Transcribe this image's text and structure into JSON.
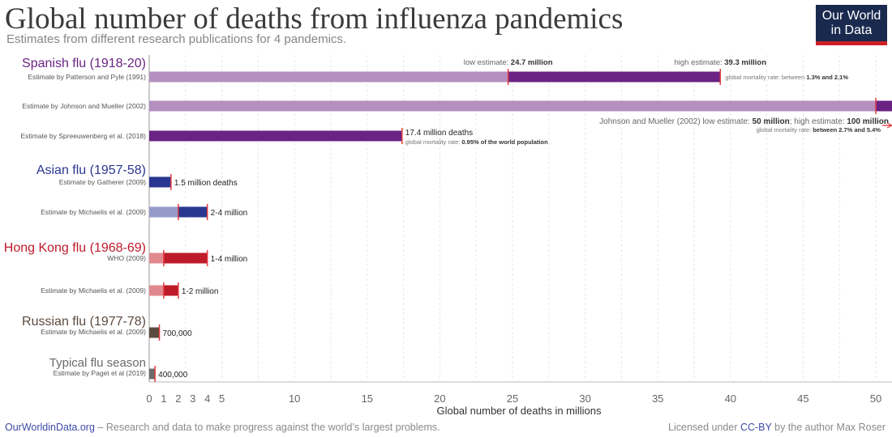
{
  "header": {
    "title": "Global number of deaths from influenza pandemics",
    "subtitle": "Estimates from different research publications for 4 pandemics.",
    "logo": "Our World in Data",
    "logo_line1": "Our World",
    "logo_line2": "in Data"
  },
  "footer": {
    "site": "OurWorldinData.org",
    "tagline": " – Research and data to make progress against the world’s largest problems.",
    "license_prefix": "Licensed under ",
    "license": "CC-BY",
    "license_suffix": " by the author Max Roser"
  },
  "chart_data": {
    "type": "bar",
    "orientation": "horizontal",
    "xlabel": "Global number of deaths in millions",
    "xlim": [
      0,
      50
    ],
    "xticks": [
      0,
      1,
      2,
      3,
      4,
      5,
      10,
      15,
      20,
      25,
      30,
      35,
      40,
      45,
      50
    ],
    "grid": true,
    "groups": [
      {
        "name": "Spanish flu (1918-20)",
        "color_dark": "#6a2383",
        "color_light": "#b48fbf",
        "rows": [
          {
            "label": "Estimate by Patterson and Pyle (1991)",
            "low": 24.7,
            "high": 39.3,
            "annotation_low": "low estimate: ",
            "annotation_low_value": "24.7 million",
            "annotation_high": "high estimate: ",
            "annotation_high_value": "39.3 million",
            "note": "global mortality rate: between ",
            "note_value": "1.3% and 2.1%"
          },
          {
            "label": "Estimate by Johnson and Mueller (2002)",
            "low": 50,
            "high": 100,
            "annotation": "Johnson and Mueller (2002) low estimate: ",
            "annotation_v1": "50 million",
            "annotation_mid": "; high estimate: ",
            "annotation_v2": "100 million",
            "note": "global mortality rate: ",
            "note_value": "between 2.7% and 5.4%"
          },
          {
            "label": "Estimate by Spreeuwenberg et al. (2018)",
            "low": null,
            "high": 17.4,
            "annotation": "17.4 million deaths",
            "note": "global mortality rate: ",
            "note_value": "0.95% of the world population"
          }
        ]
      },
      {
        "name": "Asian flu (1957-58)",
        "color_dark": "#2a3790",
        "color_light": "#959bcb",
        "rows": [
          {
            "label": "Estimate by Gatherer (2009)",
            "low": null,
            "high": 1.5,
            "annotation": "1.5 million deaths"
          },
          {
            "label": "Estimate by Michaelis et al. (2009)",
            "low": 2,
            "high": 4,
            "annotation": "2-4 million"
          }
        ]
      },
      {
        "name": "Hong Kong flu (1968-69)",
        "color_dark": "#be1b2a",
        "color_light": "#e1888f",
        "rows": [
          {
            "label": "WHO (2009)",
            "low": 1,
            "high": 4,
            "annotation": "1-4 million"
          },
          {
            "label": "Estimate by Michaelis et al. (2009)",
            "low": 1,
            "high": 2,
            "annotation": "1-2 million"
          }
        ]
      },
      {
        "name": "Russian flu (1977-78)",
        "color_dark": "#5c4a3e",
        "color_light": "#5c4a3e",
        "rows": [
          {
            "label": "Estimate by Michaelis et al. (2009)",
            "low": null,
            "high": 0.7,
            "annotation": "700,000"
          }
        ]
      },
      {
        "name": "Typical flu season",
        "color_dark": "#6b6b6b",
        "color_light": "#6b6b6b",
        "rows": [
          {
            "label": "Estimate by Paget et al (2019)",
            "low": null,
            "high": 0.4,
            "annotation": "400,000"
          }
        ]
      }
    ],
    "marker_color": "#e03a3e"
  }
}
